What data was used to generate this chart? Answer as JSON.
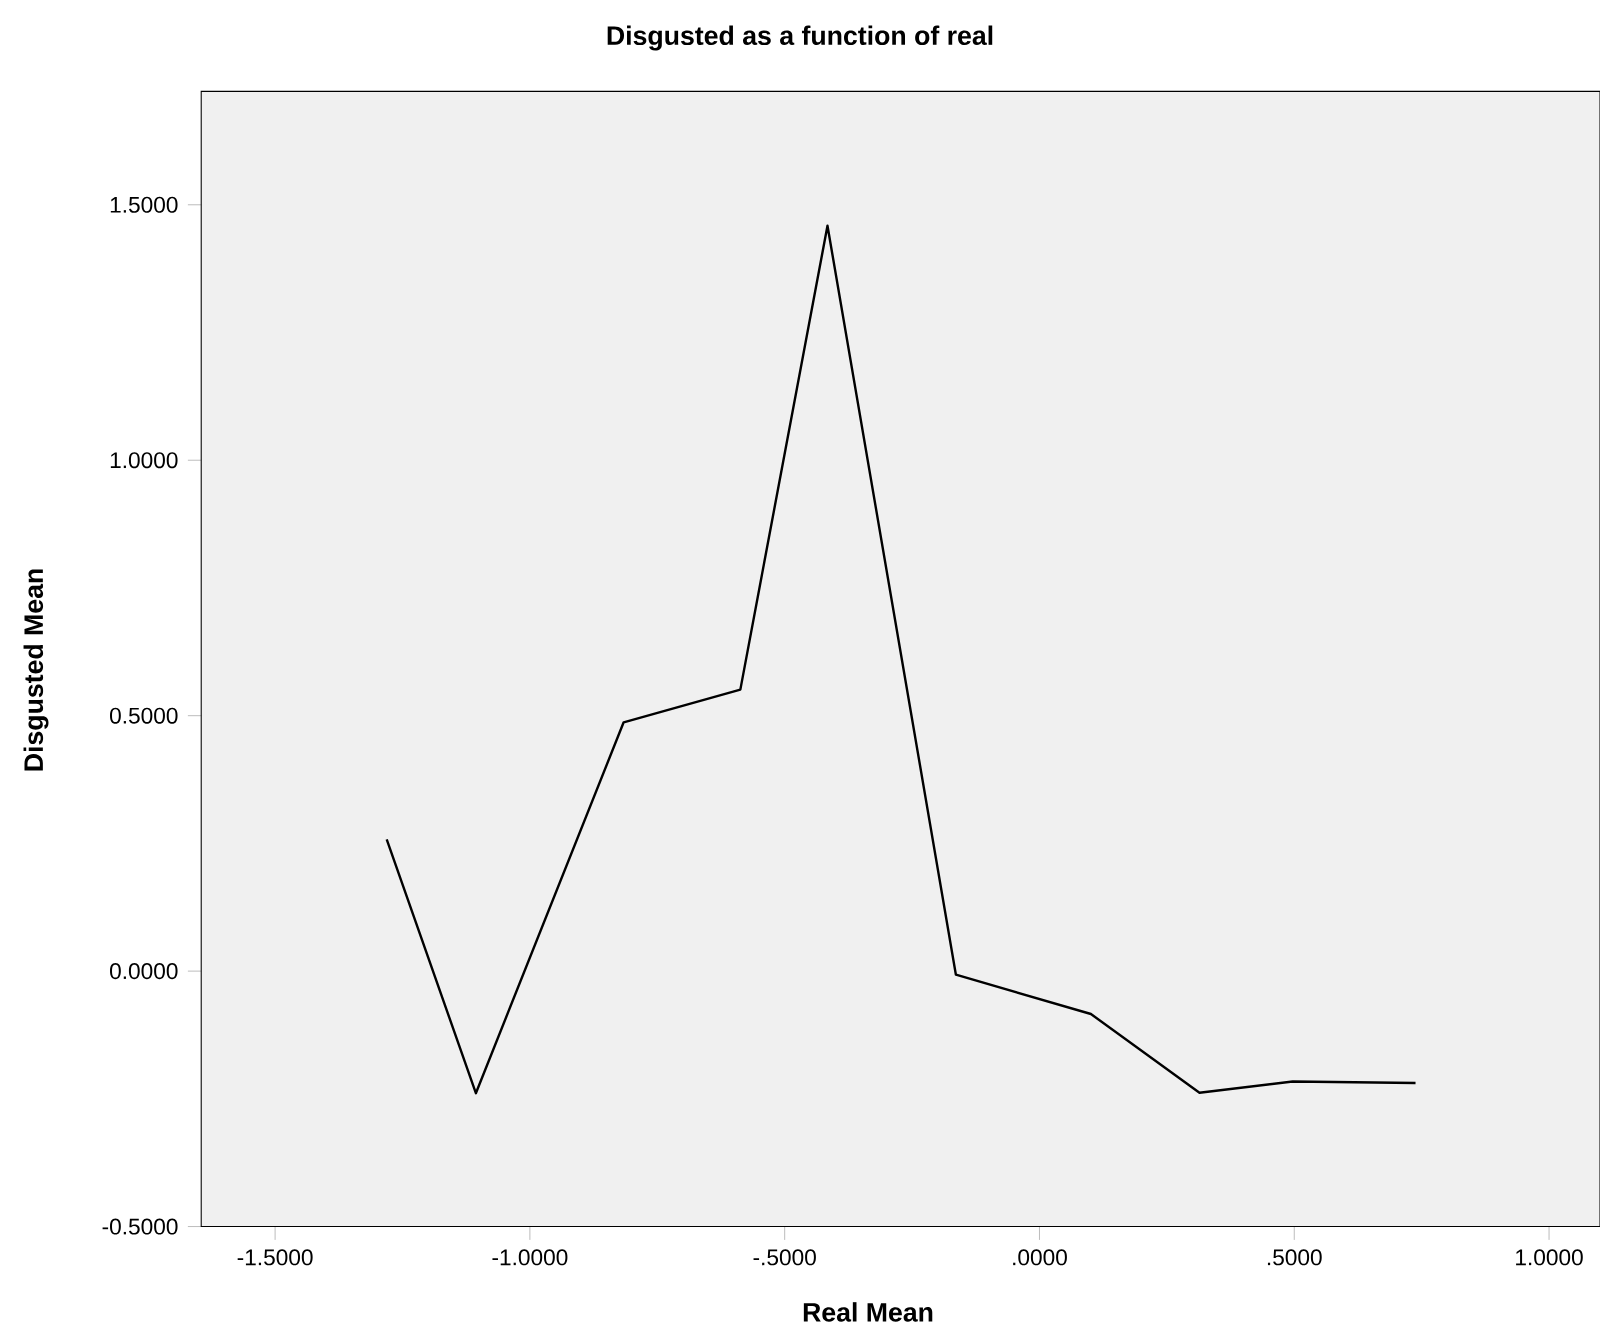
{
  "chart_data": {
    "type": "line",
    "title": "Disgusted as a function of real",
    "xlabel": "Real Mean",
    "ylabel": "Disgusted Mean",
    "x": [
      -1.281,
      -1.106,
      -0.816,
      -0.587,
      -0.416,
      -0.164,
      0.101,
      0.314,
      0.497,
      0.738
    ],
    "series": [
      {
        "color": "#000000",
        "values": [
          0.258,
          -0.239,
          0.487,
          0.551,
          1.459,
          -0.007,
          -0.084,
          -0.238,
          -0.216,
          -0.219
        ]
      }
    ],
    "xlim": [
      -1.645,
      1.1
    ],
    "ylim": [
      -0.5,
      1.722
    ],
    "xticks": [
      {
        "value": -1.5,
        "label": "-1.5000"
      },
      {
        "value": -1.0,
        "label": "-1.0000"
      },
      {
        "value": -0.5,
        "label": "-.5000"
      },
      {
        "value": 0,
        "label": ".0000"
      },
      {
        "value": 0.5,
        "label": ".5000"
      },
      {
        "value": 1.0,
        "label": "1.0000"
      }
    ],
    "yticks": [
      {
        "value": -0.5,
        "label": "-0.5000"
      },
      {
        "value": 0,
        "label": "0.0000"
      },
      {
        "value": 0.5,
        "label": "0.5000"
      },
      {
        "value": 1.0,
        "label": "1.0000"
      },
      {
        "value": 1.5,
        "label": "1.5000"
      }
    ],
    "grid": false,
    "marker": "none",
    "line_style": "solid"
  }
}
